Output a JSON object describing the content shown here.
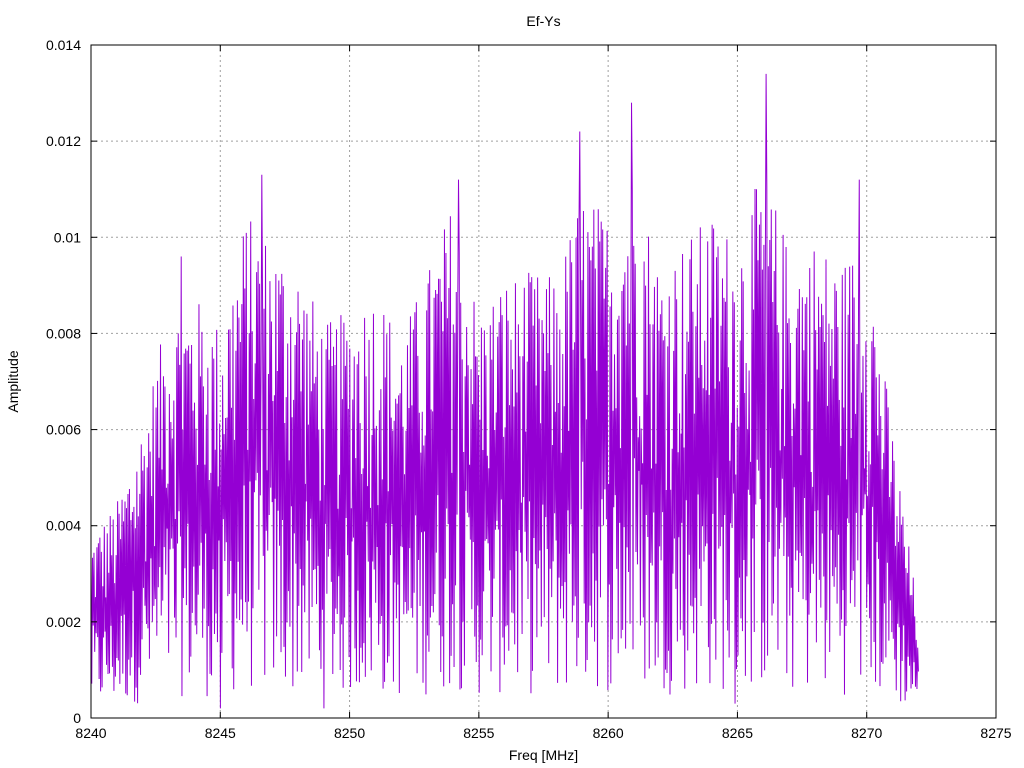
{
  "chart_data": {
    "type": "line",
    "title": "Ef-Ys",
    "xlabel": "Freq [MHz]",
    "ylabel": "Amplitude",
    "xlim": [
      8240,
      8275
    ],
    "ylim": [
      0,
      0.014
    ],
    "xticks": [
      "8240",
      "8245",
      "8250",
      "8255",
      "8260",
      "8265",
      "8270",
      "8275"
    ],
    "yticks": [
      "0",
      "0.002",
      "0.004",
      "0.006",
      "0.008",
      "0.01",
      "0.012",
      "0.014"
    ],
    "grid": true,
    "series": [
      {
        "color": "#9400d3",
        "x_start": 8240,
        "x_end": 8272,
        "points": 1120,
        "envelope": [
          [
            8240,
            0.0038
          ],
          [
            8241,
            0.0045
          ],
          [
            8242,
            0.0062
          ],
          [
            8243,
            0.0085
          ],
          [
            8244,
            0.0088
          ],
          [
            8245,
            0.0082
          ],
          [
            8246,
            0.0105
          ],
          [
            8247,
            0.01
          ],
          [
            8248,
            0.0095
          ],
          [
            8249,
            0.0082
          ],
          [
            8250,
            0.0085
          ],
          [
            8251,
            0.009
          ],
          [
            8252,
            0.008
          ],
          [
            8253,
            0.0093
          ],
          [
            8254,
            0.0108
          ],
          [
            8255,
            0.0085
          ],
          [
            8256,
            0.0092
          ],
          [
            8257,
            0.0093
          ],
          [
            8258,
            0.0092
          ],
          [
            8259,
            0.011
          ],
          [
            8260,
            0.0105
          ],
          [
            8261,
            0.0115
          ],
          [
            8262,
            0.0095
          ],
          [
            8263,
            0.01
          ],
          [
            8264,
            0.0105
          ],
          [
            8265,
            0.01
          ],
          [
            8266,
            0.0115
          ],
          [
            8267,
            0.0098
          ],
          [
            8268,
            0.01
          ],
          [
            8269,
            0.0095
          ],
          [
            8270,
            0.01
          ],
          [
            8271,
            0.006
          ],
          [
            8272,
            0.0022
          ]
        ],
        "peaks": [
          [
            8243.5,
            0.0096
          ],
          [
            8245.0,
            0.0002
          ],
          [
            8246.6,
            0.0113
          ],
          [
            8249.0,
            0.0002
          ],
          [
            8254.2,
            0.0112
          ],
          [
            8258.9,
            0.0122
          ],
          [
            8260.9,
            0.0128
          ],
          [
            8266.1,
            0.0134
          ],
          [
            8269.7,
            0.0112
          ],
          [
            8264.9,
            0.0003
          ]
        ]
      }
    ]
  }
}
